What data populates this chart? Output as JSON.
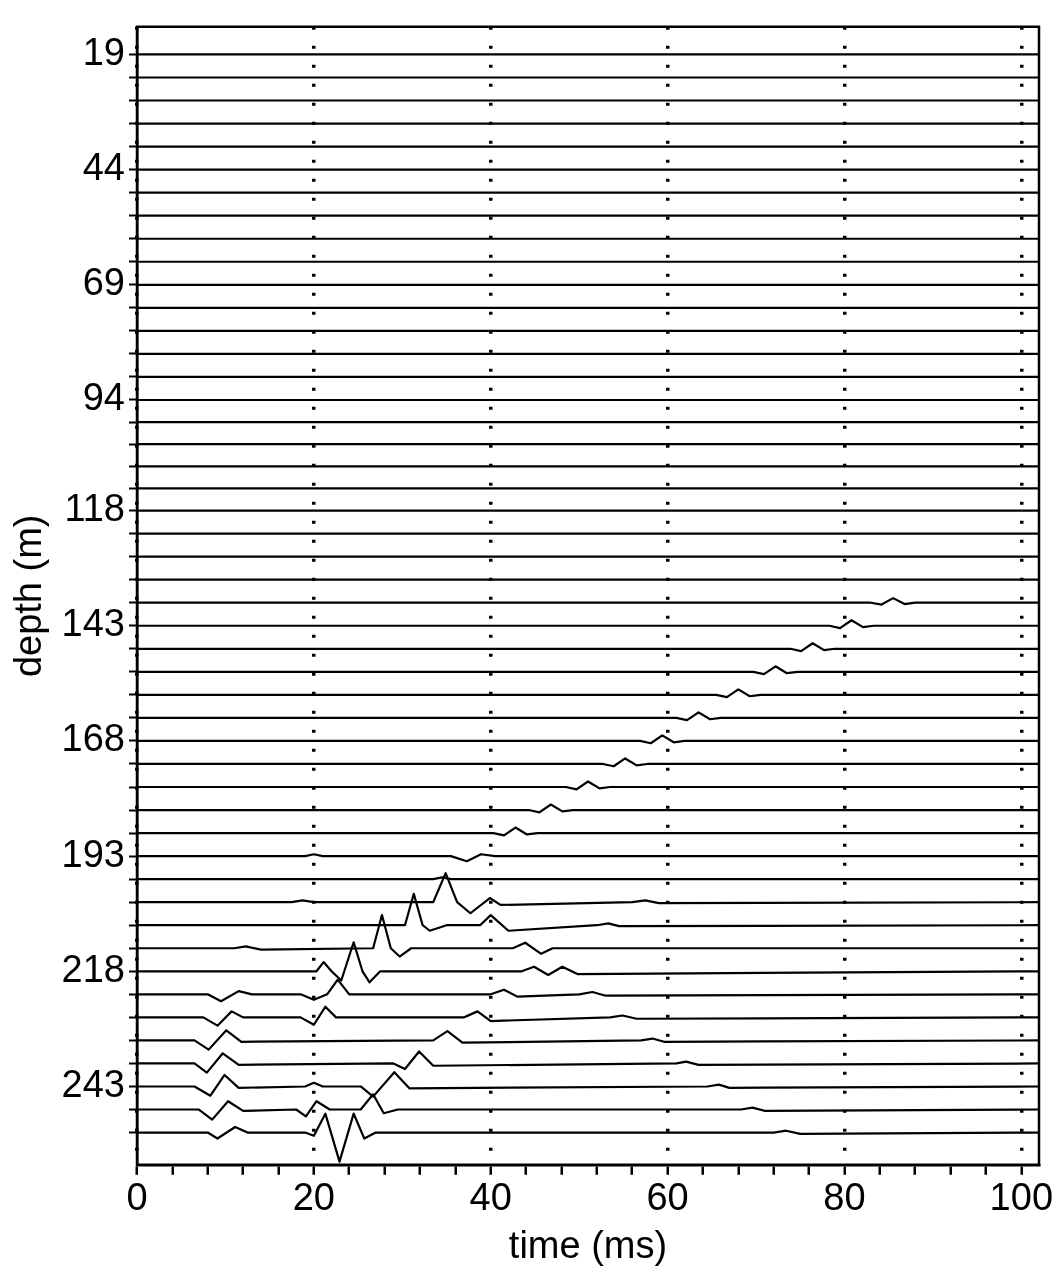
{
  "chart_data": {
    "type": "line",
    "xlabel": "time (ms)",
    "ylabel": "depth (m)",
    "xlim": [
      0,
      102
    ],
    "ylim": [
      260,
      13
    ],
    "xticks": [
      0,
      {
        "value": 4,
        "label": null
      },
      {
        "value": 8,
        "label": null
      },
      {
        "value": 12,
        "label": null
      },
      {
        "value": 16,
        "label": null
      },
      20,
      {
        "value": 24,
        "label": null
      },
      {
        "value": 28,
        "label": null
      },
      {
        "value": 32,
        "label": null
      },
      {
        "value": 36,
        "label": null
      },
      40,
      {
        "value": 44,
        "label": null
      },
      {
        "value": 48,
        "label": null
      },
      {
        "value": 52,
        "label": null
      },
      {
        "value": 56,
        "label": null
      },
      60,
      {
        "value": 64,
        "label": null
      },
      {
        "value": 68,
        "label": null
      },
      {
        "value": 72,
        "label": null
      },
      {
        "value": 76,
        "label": null
      },
      80,
      {
        "value": 84,
        "label": null
      },
      {
        "value": 88,
        "label": null
      },
      {
        "value": 92,
        "label": null
      },
      {
        "value": 96,
        "label": null
      },
      100
    ],
    "yticks": [
      19,
      {
        "value": 24,
        "label": null
      },
      {
        "value": 29,
        "label": null
      },
      {
        "value": 34,
        "label": null
      },
      {
        "value": 39,
        "label": null
      },
      44,
      {
        "value": 49,
        "label": null
      },
      {
        "value": 54,
        "label": null
      },
      {
        "value": 59,
        "label": null
      },
      {
        "value": 64,
        "label": null
      },
      69,
      {
        "value": 74,
        "label": null
      },
      {
        "value": 79,
        "label": null
      },
      {
        "value": 84,
        "label": null
      },
      {
        "value": 89,
        "label": null
      },
      94,
      {
        "value": 98.8,
        "label": null
      },
      {
        "value": 103.6,
        "label": null
      },
      {
        "value": 108.4,
        "label": null
      },
      {
        "value": 113.2,
        "label": null
      },
      118,
      {
        "value": 123,
        "label": null
      },
      {
        "value": 128,
        "label": null
      },
      {
        "value": 133,
        "label": null
      },
      {
        "value": 138,
        "label": null
      },
      143,
      {
        "value": 148,
        "label": null
      },
      {
        "value": 153,
        "label": null
      },
      {
        "value": 158,
        "label": null
      },
      {
        "value": 163,
        "label": null
      },
      168,
      {
        "value": 173,
        "label": null
      },
      {
        "value": 178,
        "label": null
      },
      {
        "value": 183,
        "label": null
      },
      {
        "value": 188,
        "label": null
      },
      193,
      {
        "value": 198,
        "label": null
      },
      {
        "value": 203,
        "label": null
      },
      {
        "value": 208,
        "label": null
      },
      {
        "value": 213,
        "label": null
      },
      218,
      {
        "value": 223,
        "label": null
      },
      {
        "value": 228,
        "label": null
      },
      {
        "value": 233,
        "label": null
      },
      {
        "value": 238,
        "label": null
      },
      243,
      {
        "value": 248,
        "label": null
      },
      {
        "value": 253,
        "label": null
      }
    ],
    "grid": "x",
    "legend": false,
    "line_style": "solid",
    "series": [
      {
        "color": "#000000",
        "x": [
          0,
          102
        ],
        "values": [
          19,
          19
        ]
      },
      {
        "color": "#000000",
        "x": [
          0,
          102
        ],
        "values": [
          24,
          24
        ]
      },
      {
        "color": "#000000",
        "x": [
          0,
          102
        ],
        "values": [
          29,
          29
        ]
      },
      {
        "color": "#000000",
        "x": [
          0,
          102
        ],
        "values": [
          34,
          34
        ]
      },
      {
        "color": "#000000",
        "x": [
          0,
          102
        ],
        "values": [
          39,
          39
        ]
      },
      {
        "color": "#000000",
        "x": [
          0,
          102
        ],
        "values": [
          44,
          44
        ]
      },
      {
        "color": "#000000",
        "x": [
          0,
          102
        ],
        "values": [
          49,
          49
        ]
      },
      {
        "color": "#000000",
        "x": [
          0,
          102
        ],
        "values": [
          54,
          54
        ]
      },
      {
        "color": "#000000",
        "x": [
          0,
          102
        ],
        "values": [
          59,
          59
        ]
      },
      {
        "color": "#000000",
        "x": [
          0,
          102
        ],
        "values": [
          64,
          64
        ]
      },
      {
        "color": "#000000",
        "x": [
          0,
          102
        ],
        "values": [
          69,
          69
        ]
      },
      {
        "color": "#000000",
        "x": [
          0,
          102
        ],
        "values": [
          74,
          74
        ]
      },
      {
        "color": "#000000",
        "x": [
          0,
          102
        ],
        "values": [
          79,
          79
        ]
      },
      {
        "color": "#000000",
        "x": [
          0,
          102
        ],
        "values": [
          84,
          84
        ]
      },
      {
        "color": "#000000",
        "x": [
          0,
          102
        ],
        "values": [
          89,
          89
        ]
      },
      {
        "color": "#000000",
        "x": [
          0,
          102
        ],
        "values": [
          94,
          94
        ]
      },
      {
        "color": "#000000",
        "x": [
          0,
          102
        ],
        "values": [
          98.8,
          98.8
        ]
      },
      {
        "color": "#000000",
        "x": [
          0,
          102
        ],
        "values": [
          103.6,
          103.6
        ]
      },
      {
        "color": "#000000",
        "x": [
          0,
          102
        ],
        "values": [
          108.4,
          108.4
        ]
      },
      {
        "color": "#000000",
        "x": [
          0,
          102
        ],
        "values": [
          113.2,
          113.2
        ]
      },
      {
        "color": "#000000",
        "x": [
          0,
          102
        ],
        "values": [
          118,
          118
        ]
      },
      {
        "color": "#000000",
        "x": [
          0,
          102
        ],
        "values": [
          123,
          123
        ]
      },
      {
        "color": "#000000",
        "x": [
          0,
          102
        ],
        "values": [
          128,
          128
        ]
      },
      {
        "color": "#000000",
        "x": [
          0,
          102
        ],
        "values": [
          133,
          133
        ]
      },
      {
        "color": "#000000",
        "x": [
          0,
          83,
          84.2,
          85.5,
          86.8,
          88,
          102
        ],
        "values": [
          138,
          138,
          138.4,
          137,
          138.3,
          138,
          138
        ]
      },
      {
        "color": "#000000",
        "x": [
          0,
          78.3,
          79.5,
          80.8,
          82.1,
          83.3,
          102
        ],
        "values": [
          143,
          143,
          143.5,
          141.8,
          143.3,
          143,
          143
        ]
      },
      {
        "color": "#000000",
        "x": [
          0,
          73.9,
          75.1,
          76.4,
          77.7,
          78.9,
          102
        ],
        "values": [
          148,
          148,
          148.5,
          146.8,
          148.3,
          148,
          148
        ]
      },
      {
        "color": "#000000",
        "x": [
          0,
          69.7,
          70.9,
          72.2,
          73.5,
          74.7,
          102
        ],
        "values": [
          153,
          153,
          153.5,
          151.8,
          153.3,
          153,
          153
        ]
      },
      {
        "color": "#000000",
        "x": [
          0,
          65.5,
          66.7,
          68,
          69.3,
          70.5,
          102
        ],
        "values": [
          158,
          158,
          158.5,
          156.8,
          158.3,
          158,
          158
        ]
      },
      {
        "color": "#000000",
        "x": [
          0,
          61,
          62.2,
          63.5,
          64.8,
          66,
          102
        ],
        "values": [
          163,
          163,
          163.5,
          161.8,
          163.3,
          163,
          163
        ]
      },
      {
        "color": "#000000",
        "x": [
          0,
          56.9,
          58.1,
          59.4,
          60.7,
          61.9,
          102
        ],
        "values": [
          168,
          168,
          168.5,
          166.8,
          168.3,
          168,
          168
        ]
      },
      {
        "color": "#000000",
        "x": [
          0,
          52.7,
          53.9,
          55.2,
          56.5,
          57.7,
          102
        ],
        "values": [
          173,
          173,
          173.5,
          171.8,
          173.3,
          173,
          173
        ]
      },
      {
        "color": "#000000",
        "x": [
          0,
          48.5,
          49.7,
          51,
          52.3,
          53.5,
          102
        ],
        "values": [
          178,
          178,
          178.5,
          176.8,
          178.3,
          178,
          178
        ]
      },
      {
        "color": "#000000",
        "x": [
          0,
          44.3,
          45.5,
          46.8,
          48.1,
          49.3,
          102
        ],
        "values": [
          183,
          183,
          183.5,
          181.8,
          183.3,
          183,
          183
        ]
      },
      {
        "color": "#000000",
        "x": [
          0,
          40.3,
          41.5,
          42.8,
          44.1,
          45.3,
          102
        ],
        "values": [
          188,
          188,
          188.5,
          186.8,
          188.3,
          188,
          188
        ]
      },
      {
        "color": "#000000",
        "x": [
          0,
          19,
          20,
          21,
          35.5,
          37.3,
          38.9,
          40.5,
          102
        ],
        "values": [
          193,
          193,
          192.6,
          193,
          193,
          194.1,
          192.6,
          193,
          193
        ]
      },
      {
        "color": "#000000",
        "x": [
          0,
          33.5,
          34.5,
          35.5,
          102
        ],
        "values": [
          198,
          198,
          197.6,
          198,
          198
        ]
      },
      {
        "color": "#000000",
        "x": [
          0,
          17.5,
          18.7,
          20,
          33.5,
          34.9,
          36.2,
          37.7,
          39.9,
          41.1,
          56,
          57.5,
          59,
          102
        ],
        "values": [
          203,
          203,
          202.6,
          203,
          203,
          196.7,
          203,
          205.4,
          202.1,
          203.6,
          203,
          202.6,
          203.2,
          203
        ]
      },
      {
        "color": "#000000",
        "x": [
          0,
          30.3,
          31.3,
          32.3,
          33.1,
          35,
          38.8,
          40,
          42,
          52,
          53.3,
          54.5,
          102
        ],
        "values": [
          208,
          208,
          201.2,
          208,
          209.2,
          208,
          208,
          205.8,
          209.2,
          208,
          207.6,
          208.2,
          208
        ]
      },
      {
        "color": "#000000",
        "x": [
          0,
          11,
          12.3,
          14,
          26.7,
          27.7,
          28.7,
          29.7,
          31,
          42.5,
          43.9,
          45.7,
          47,
          102
        ],
        "values": [
          213,
          213,
          212.6,
          213.3,
          213,
          205.8,
          213,
          214.8,
          213,
          213,
          211.8,
          214.2,
          213,
          213
        ]
      },
      {
        "color": "#000000",
        "x": [
          0,
          20.3,
          21.1,
          22,
          23.1,
          24.5,
          25.5,
          26.3,
          27.5,
          43.5,
          44.9,
          46.5,
          48.1,
          49.8,
          102
        ],
        "values": [
          218,
          218,
          216,
          218,
          220,
          211.7,
          218,
          220.4,
          218,
          218,
          217,
          218.8,
          217,
          218.6,
          218
        ]
      },
      {
        "color": "#000000",
        "x": [
          0,
          8,
          9.5,
          11.5,
          13,
          18.5,
          20,
          21.5,
          22.7,
          24,
          40,
          41.5,
          43,
          50,
          51.5,
          53,
          102
        ],
        "values": [
          223,
          223,
          224.5,
          222.3,
          223,
          223,
          224.2,
          223,
          219.8,
          223,
          223,
          222,
          223.5,
          223,
          222.5,
          223.3,
          223
        ]
      },
      {
        "color": "#000000",
        "x": [
          0,
          7.5,
          9.1,
          10.7,
          12,
          18.5,
          20,
          21.3,
          22.5,
          37,
          38.5,
          40,
          53.5,
          54.9,
          56.5,
          102
        ],
        "values": [
          228,
          228,
          229.8,
          226.7,
          228,
          228,
          229.6,
          225.7,
          228,
          228,
          226.7,
          228.8,
          228,
          227.6,
          228.3,
          228
        ]
      },
      {
        "color": "#000000",
        "x": [
          0,
          6.5,
          8.1,
          10.1,
          11.8,
          33.5,
          35.1,
          36.8,
          57,
          58.3,
          59.6,
          102
        ],
        "values": [
          233,
          233,
          235,
          230.8,
          233.3,
          233,
          231,
          233.5,
          233,
          232.6,
          233.3,
          233
        ]
      },
      {
        "color": "#000000",
        "x": [
          0,
          6.5,
          7.9,
          9.7,
          11.5,
          29,
          30.3,
          31.9,
          33.5,
          61,
          62.1,
          63.5,
          102
        ],
        "values": [
          238,
          238,
          240,
          235.8,
          238.3,
          238,
          239.2,
          235.4,
          238.5,
          238,
          237.6,
          238.3,
          238
        ]
      },
      {
        "color": "#000000",
        "x": [
          0,
          6.5,
          8.3,
          9.9,
          11.5,
          19,
          20,
          21,
          25.3,
          26.7,
          29.1,
          30.8,
          64.5,
          65.8,
          67,
          102
        ],
        "values": [
          243,
          243,
          245,
          240.5,
          243.3,
          243,
          242.2,
          243,
          243,
          245.2,
          239.9,
          243.4,
          243,
          242.6,
          243.3,
          243
        ]
      },
      {
        "color": "#000000",
        "x": [
          0,
          7,
          8.5,
          10.3,
          12,
          18,
          19.1,
          20.3,
          21.8,
          25.3,
          26.7,
          27.9,
          29.5,
          68.3,
          69.6,
          71,
          102
        ],
        "values": [
          248,
          248,
          250.2,
          246.2,
          248.3,
          248,
          249.5,
          246.2,
          248,
          248,
          244.7,
          248.8,
          248,
          248,
          247.6,
          248.3,
          248
        ]
      },
      {
        "color": "#000000",
        "x": [
          0,
          8,
          9.1,
          11.1,
          12.5,
          19,
          20,
          21.3,
          22.9,
          24.5,
          25.7,
          27,
          72,
          73.4,
          75,
          102
        ],
        "values": [
          253,
          253,
          254.3,
          251.8,
          253,
          253,
          253.7,
          248.9,
          259.3,
          248.9,
          254.3,
          253,
          253,
          252.6,
          253.3,
          253
        ]
      }
    ]
  }
}
